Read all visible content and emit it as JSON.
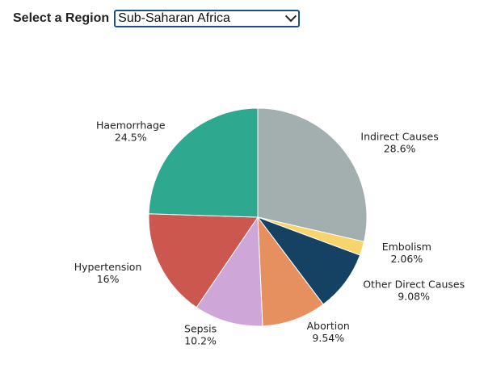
{
  "filter": {
    "label": "Select a Region",
    "selected": "Sub-Saharan Africa"
  },
  "chart_data": {
    "type": "pie",
    "slices": [
      {
        "name": "Indirect Causes",
        "value": 28.6,
        "pct_label": "28.6%",
        "color": "#a2afae"
      },
      {
        "name": "Embolism",
        "value": 2.06,
        "pct_label": "2.06%",
        "color": "#f7d46c"
      },
      {
        "name": "Other Direct Causes",
        "value": 9.08,
        "pct_label": "9.08%",
        "color": "#154262"
      },
      {
        "name": "Abortion",
        "value": 9.54,
        "pct_label": "9.54%",
        "color": "#e68f5f"
      },
      {
        "name": "Sepsis",
        "value": 10.2,
        "pct_label": "10.2%",
        "color": "#cfa6d8"
      },
      {
        "name": "Hypertension",
        "value": 16,
        "pct_label": "16%",
        "color": "#cc574e"
      },
      {
        "name": "Haemorrhage",
        "value": 24.5,
        "pct_label": "24.5%",
        "color": "#2ea88f"
      }
    ],
    "start": "12 o'clock",
    "direction": "clockwise"
  }
}
